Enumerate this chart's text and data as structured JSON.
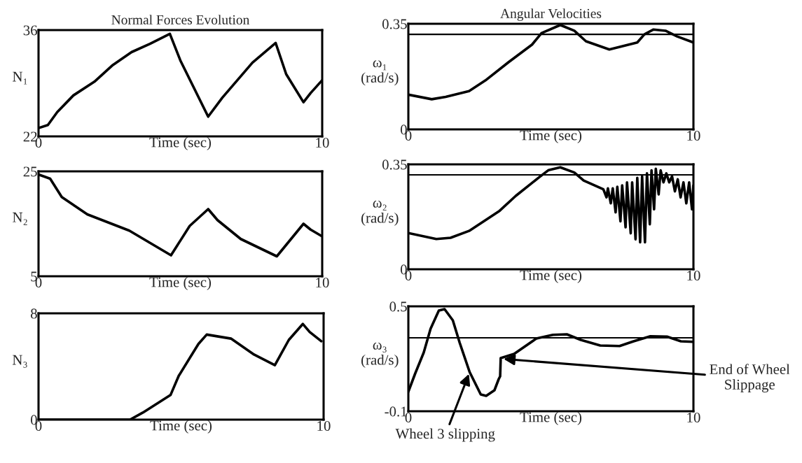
{
  "chart_data": [
    {
      "type": "line",
      "title": "Normal Forces Evolution",
      "xlabel": "Time (sec)",
      "ylabel": "N₁",
      "xlim": [
        0,
        10
      ],
      "ylim": [
        22,
        36
      ],
      "xticks": [
        0,
        10
      ],
      "yticks": [
        22,
        36
      ],
      "series": [
        {
          "color": "#000000",
          "x": [
            0,
            0.33,
            0.66,
            1.23,
            1.97,
            2.62,
            3.28,
            3.93,
            4.63,
            5.0,
            5.98,
            6.48,
            7.54,
            8.36,
            8.73,
            9.34,
            9.59,
            10
          ],
          "values": [
            23.1,
            23.5,
            25.2,
            27.4,
            29.2,
            31.4,
            33.1,
            34.2,
            35.5,
            32.0,
            24.6,
            27.1,
            31.7,
            34.3,
            30.2,
            26.5,
            27.7,
            29.4
          ]
        }
      ]
    },
    {
      "type": "line",
      "title": "Angular Velocities",
      "xlabel": "Time (sec)",
      "ylabel": "ω₁\n(rad/s)",
      "xlim": [
        0,
        10
      ],
      "ylim": [
        0,
        0.35
      ],
      "xticks": [
        0,
        10
      ],
      "yticks": [
        0,
        0.35
      ],
      "ref_lines": [
        {
          "axis": "y",
          "value": 0.315,
          "color": "#000000"
        }
      ],
      "series": [
        {
          "color": "#000000",
          "x": [
            0,
            0.82,
            1.31,
            2.13,
            2.7,
            3.52,
            4.34,
            4.67,
            5.33,
            5.82,
            6.23,
            7.05,
            8.03,
            8.28,
            8.6,
            9.02,
            9.43,
            10
          ],
          "values": [
            0.115,
            0.1,
            0.108,
            0.127,
            0.162,
            0.223,
            0.281,
            0.319,
            0.346,
            0.327,
            0.292,
            0.265,
            0.288,
            0.315,
            0.331,
            0.327,
            0.308,
            0.288
          ]
        }
      ]
    },
    {
      "type": "line",
      "xlabel": "Time (sec)",
      "ylabel": "N₂",
      "xlim": [
        0,
        10
      ],
      "ylim": [
        5,
        25
      ],
      "xticks": [
        0,
        10
      ],
      "yticks": [
        5,
        25
      ],
      "series": [
        {
          "color": "#000000",
          "x": [
            0,
            0.41,
            0.82,
            1.72,
            3.2,
            4.67,
            5.33,
            5.98,
            6.31,
            7.13,
            8.4,
            9.34,
            9.59,
            10
          ],
          "values": [
            24.4,
            23.6,
            20.1,
            16.8,
            13.7,
            9.0,
            14.6,
            17.8,
            15.7,
            12.1,
            8.8,
            15.0,
            13.9,
            12.6
          ]
        }
      ]
    },
    {
      "type": "line",
      "xlabel": "Time (sec)",
      "ylabel": "ω₂\n(rad/s)",
      "xlim": [
        0,
        10
      ],
      "ylim": [
        0,
        0.35
      ],
      "xticks": [
        0,
        10
      ],
      "yticks": [
        0,
        0.35
      ],
      "ref_lines": [
        {
          "axis": "y",
          "value": 0.315,
          "color": "#000000"
        }
      ],
      "series": [
        {
          "color": "#000000",
          "x": [
            0,
            0.98,
            1.48,
            2.13,
            3.2,
            3.77,
            4.59,
            4.92,
            5.33,
            5.82,
            6.15,
            6.84,
            6.95,
            7.0,
            7.1,
            7.17,
            7.27,
            7.33,
            7.44,
            7.5,
            7.62,
            7.67,
            7.8,
            7.85,
            7.97,
            8.03,
            8.13,
            8.2,
            8.3,
            8.37,
            8.47,
            8.53,
            8.62,
            8.68,
            8.78,
            8.85,
            8.95,
            9.05,
            9.15,
            9.25,
            9.35,
            9.45,
            9.55,
            9.65,
            9.75,
            9.85,
            9.95,
            10
          ],
          "values": [
            0.121,
            0.101,
            0.105,
            0.128,
            0.195,
            0.245,
            0.307,
            0.331,
            0.34,
            0.323,
            0.296,
            0.267,
            0.24,
            0.27,
            0.22,
            0.27,
            0.19,
            0.275,
            0.16,
            0.28,
            0.14,
            0.29,
            0.12,
            0.29,
            0.1,
            0.305,
            0.09,
            0.31,
            0.09,
            0.32,
            0.15,
            0.33,
            0.2,
            0.335,
            0.25,
            0.33,
            0.29,
            0.32,
            0.29,
            0.31,
            0.26,
            0.3,
            0.24,
            0.29,
            0.22,
            0.29,
            0.2,
            0.28
          ]
        }
      ]
    },
    {
      "type": "line",
      "xlabel": "Time (sec)",
      "ylabel": "N₃",
      "xlim": [
        0,
        10
      ],
      "ylim": [
        0,
        8
      ],
      "xticks": [
        0,
        10
      ],
      "yticks": [
        0,
        8
      ],
      "series": [
        {
          "color": "#000000",
          "x": [
            0,
            3.21,
            3.66,
            4.63,
            4.92,
            5.61,
            5.9,
            6.75,
            7.56,
            8.29,
            8.78,
            9.27,
            9.51,
            9.92
          ],
          "values": [
            0,
            0,
            0.53,
            1.85,
            3.3,
            5.7,
            6.4,
            6.1,
            4.9,
            4.1,
            6.0,
            7.2,
            6.6,
            5.9
          ]
        }
      ]
    },
    {
      "type": "line",
      "xlabel": "Time (sec)",
      "ylabel": "ω₃\n(rad/s)",
      "xlim": [
        0,
        10
      ],
      "ylim": [
        -0.1,
        0.5
      ],
      "xticks": [
        0,
        10
      ],
      "yticks": [
        -0.1,
        0.5
      ],
      "ref_lines": [
        {
          "axis": "y",
          "value": 0.32,
          "color": "#000000"
        }
      ],
      "annotations": [
        {
          "text": "Wheel 3 slipping",
          "x": 2.15,
          "y": 0.124
        },
        {
          "text": "End of Wheel\nSlippage",
          "x": 3.27,
          "y": 0.2
        }
      ],
      "series": [
        {
          "color": "#000000",
          "x": [
            0,
            0.24,
            0.54,
            0.78,
            1.07,
            1.27,
            1.56,
            1.8,
            2.15,
            2.54,
            2.73,
            3.02,
            3.17,
            3.22,
            3.24,
            3.71,
            4.49,
            5.07,
            5.56,
            6.05,
            6.73,
            7.41,
            7.9,
            8.49,
            9.07,
            9.56,
            10
          ],
          "values": [
            0.012,
            0.116,
            0.236,
            0.372,
            0.476,
            0.484,
            0.42,
            0.292,
            0.124,
            -0.004,
            -0.012,
            0.02,
            0.084,
            0.1,
            0.204,
            0.228,
            0.316,
            0.337,
            0.34,
            0.308,
            0.276,
            0.273,
            0.3,
            0.329,
            0.327,
            0.3,
            0.297
          ]
        }
      ]
    }
  ]
}
